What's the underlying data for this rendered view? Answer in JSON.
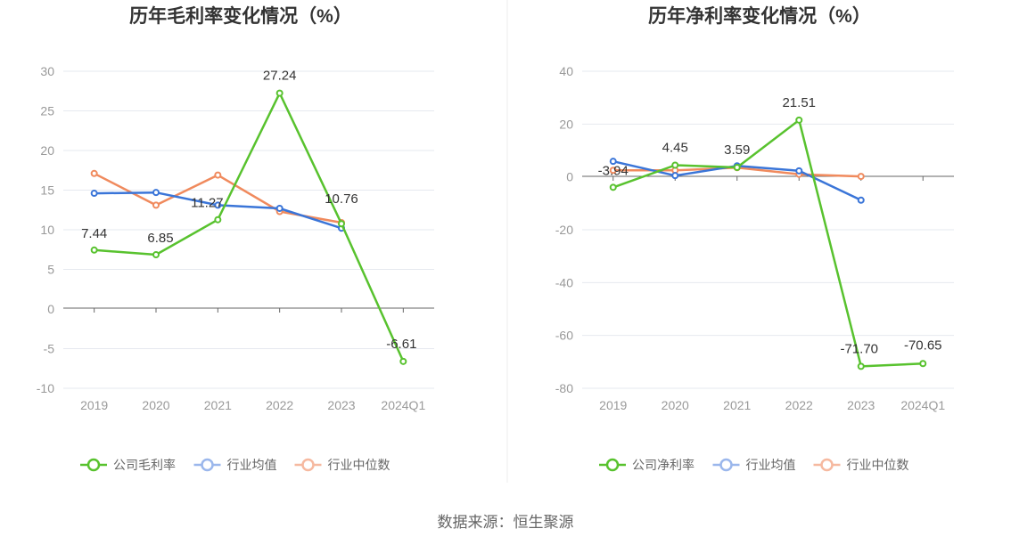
{
  "source": "数据来源：恒生聚源",
  "colors": {
    "company": "#58c22e",
    "industry_avg": "#3a75d8",
    "industry_median": "#f08a5d",
    "legend_avg": "#9bb7ec",
    "legend_median": "#f6b9a0",
    "grid": "#e6e9ef",
    "axis": "#666666"
  },
  "chart_data": [
    {
      "type": "line",
      "title": "历年毛利率变化情况（%）",
      "categories": [
        "2019",
        "2020",
        "2021",
        "2022",
        "2023",
        "2024Q1"
      ],
      "ylim": [
        -10,
        30
      ],
      "yticks": [
        30,
        25,
        20,
        15,
        10,
        5,
        0,
        -5,
        -10
      ],
      "grid": true,
      "legend_position": "bottom",
      "series": [
        {
          "name": "公司毛利率",
          "color": "#58c22e",
          "values": [
            7.44,
            6.85,
            11.27,
            27.24,
            10.76,
            -6.61
          ],
          "labels": [
            "7.44",
            "6.85",
            "11.27",
            "27.24",
            "10.76",
            "-6.61"
          ]
        },
        {
          "name": "行业均值",
          "color": "#3a75d8",
          "legend_color": "#9bb7ec",
          "values": [
            14.6,
            14.7,
            13.1,
            12.7,
            10.2,
            null
          ]
        },
        {
          "name": "行业中位数",
          "color": "#f08a5d",
          "legend_color": "#f6b9a0",
          "values": [
            17.1,
            13.1,
            16.9,
            12.3,
            10.9,
            null
          ]
        }
      ]
    },
    {
      "type": "line",
      "title": "历年净利率变化情况（%）",
      "categories": [
        "2019",
        "2020",
        "2021",
        "2022",
        "2023",
        "2024Q1"
      ],
      "ylim": [
        -80,
        40
      ],
      "yticks": [
        40,
        20,
        0,
        -20,
        -40,
        -60,
        -80
      ],
      "grid": true,
      "legend_position": "bottom",
      "series": [
        {
          "name": "公司净利率",
          "color": "#58c22e",
          "values": [
            -3.94,
            4.45,
            3.59,
            21.51,
            -71.7,
            -70.65
          ],
          "labels": [
            "-3.94",
            "4.45",
            "3.59",
            "21.51",
            "-71.70",
            "-70.65"
          ]
        },
        {
          "name": "行业均值",
          "color": "#3a75d8",
          "legend_color": "#9bb7ec",
          "values": [
            5.9,
            0.5,
            4.2,
            2.3,
            -8.8,
            null
          ]
        },
        {
          "name": "行业中位数",
          "color": "#f08a5d",
          "legend_color": "#f6b9a0",
          "values": [
            2.5,
            2.5,
            3.5,
            1.0,
            0.2,
            null
          ]
        }
      ]
    }
  ]
}
